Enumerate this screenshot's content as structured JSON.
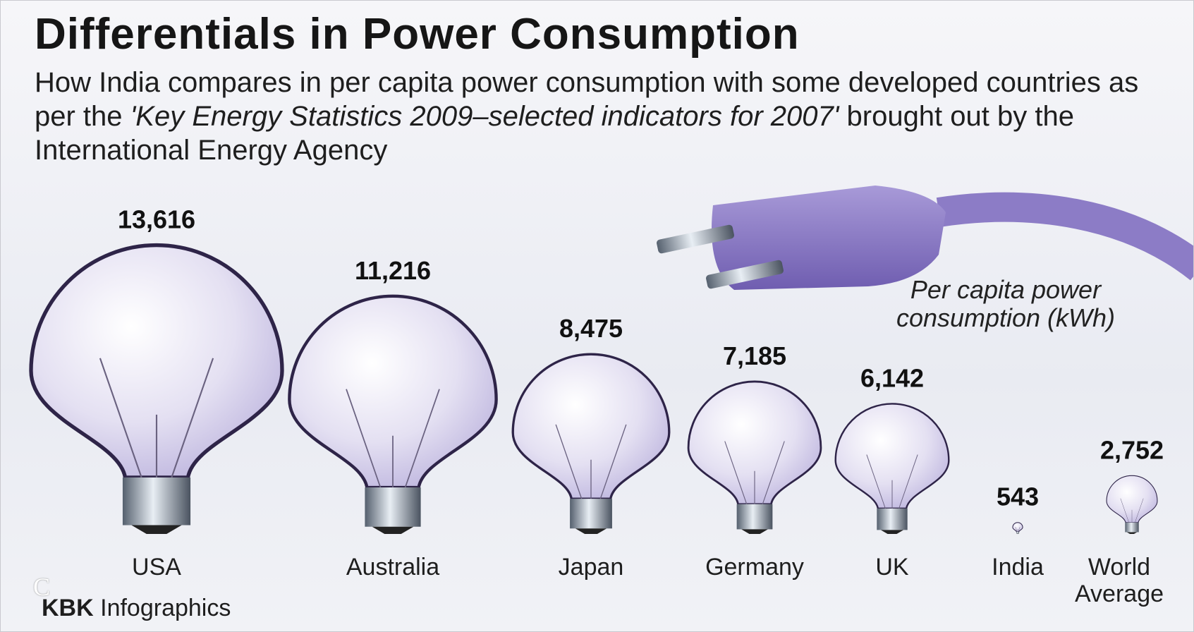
{
  "chart_data": {
    "type": "pictograph",
    "title": "Differentials in Power Consumption",
    "subtitle": [
      "How India compares in per capita power consumption with some developed countries as per the ",
      "'Key Energy Statistics 2009–selected indicators for 2007'",
      " brought out by the International Energy Agency"
    ],
    "annotation": "Per capita power consumption (kWh)",
    "categories": [
      "USA",
      "Australia",
      "Japan",
      "Germany",
      "UK",
      "India",
      "World Average"
    ],
    "values": [
      13616,
      11216,
      8475,
      7185,
      6142,
      543,
      2752
    ],
    "value_labels": [
      "13,616",
      "11,216",
      "8,475",
      "7,185",
      "6,142",
      "543",
      "2,752"
    ],
    "color": "#b9b0dc",
    "source": {
      "bold": "KBK",
      "text": "Infographics"
    },
    "watermark": "C"
  }
}
